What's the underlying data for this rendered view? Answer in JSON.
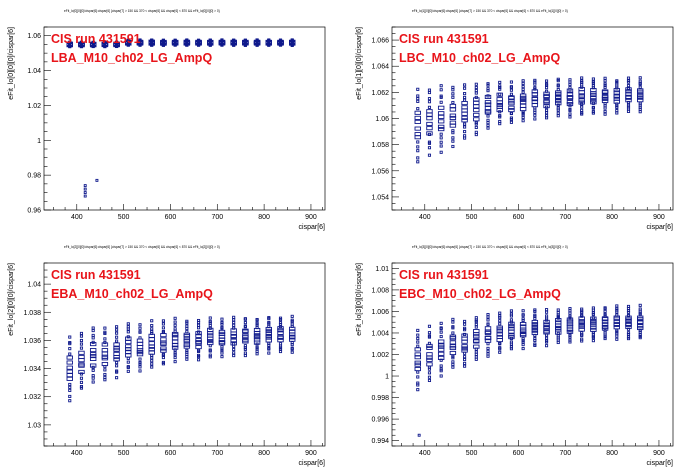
{
  "annotation_run": "CIS run 431591",
  "chart_data": [
    {
      "type": "scatter",
      "title": "eFit_lo[0][0][0]/cispar[6]:cispar[6] {cispar[7] > 150 && 370 < cispar[6] && cispar[6] < 870 && eFit_lo[0][0][0] > 0}",
      "xlabel": "cispar[6]",
      "ylabel": "eFit_lo[0][0][0]/cispar[6]",
      "annotation_module": "LBA_M10_ch02_LG_AmpQ",
      "xlim": [
        330,
        930
      ],
      "ylim": [
        0.96,
        1.065
      ],
      "xticks": [
        400,
        500,
        600,
        700,
        800,
        900
      ],
      "yticks": [
        0.96,
        0.98,
        1.0,
        1.02,
        1.04,
        1.06
      ],
      "ytick_labels": [
        "0.96",
        "0.98",
        "1",
        "1.02",
        "1.04",
        "1.06"
      ],
      "x": [
        385,
        410,
        435,
        460,
        485,
        510,
        535,
        560,
        585,
        610,
        635,
        660,
        685,
        710,
        735,
        760,
        785,
        810,
        835,
        860
      ],
      "series_center": [
        1.055,
        1.055,
        1.055,
        1.055,
        1.055,
        1.056,
        1.056,
        1.056,
        1.056,
        1.056,
        1.056,
        1.056,
        1.056,
        1.056,
        1.056,
        1.056,
        1.056,
        1.056,
        1.056,
        1.056
      ],
      "series_spread": [
        0.0025,
        0.0025,
        0.0025,
        0.0025,
        0.0025,
        0.003,
        0.003,
        0.003,
        0.003,
        0.003,
        0.003,
        0.003,
        0.003,
        0.003,
        0.003,
        0.003,
        0.003,
        0.003,
        0.003,
        0.003
      ],
      "outliers": [
        {
          "x": 418,
          "y": 0.974
        },
        {
          "x": 418,
          "y": 0.972
        },
        {
          "x": 418,
          "y": 0.97
        },
        {
          "x": 418,
          "y": 0.968
        },
        {
          "x": 443,
          "y": 0.977
        }
      ]
    },
    {
      "type": "scatter",
      "title": "eFit_lo[1][0][0]/cispar[6]:cispar[6] {cispar[7] > 150 && 370 < cispar[6] && cispar[6] < 870 && eFit_lo[1][0][0] > 0}",
      "xlabel": "cispar[6]",
      "ylabel": "eFit_lo[1][0][0]/cispar[6]",
      "annotation_module": "LBC_M10_ch02_LG_AmpQ",
      "xlim": [
        330,
        930
      ],
      "ylim": [
        1.053,
        1.067
      ],
      "xticks": [
        400,
        500,
        600,
        700,
        800,
        900
      ],
      "yticks": [
        1.054,
        1.056,
        1.058,
        1.06,
        1.062,
        1.064,
        1.066
      ],
      "ytick_labels": [
        "1.054",
        "1.056",
        "1.058",
        "1.06",
        "1.062",
        "1.064",
        "1.066"
      ],
      "x": [
        385,
        410,
        435,
        460,
        485,
        510,
        535,
        560,
        585,
        610,
        635,
        660,
        685,
        710,
        735,
        760,
        785,
        810,
        835,
        860
      ],
      "series_center": [
        1.0595,
        1.0598,
        1.06,
        1.0602,
        1.0605,
        1.0607,
        1.061,
        1.0612,
        1.0612,
        1.0613,
        1.0615,
        1.0615,
        1.0616,
        1.0616,
        1.0617,
        1.0617,
        1.0617,
        1.0617,
        1.0618,
        1.0618
      ],
      "series_spread": [
        0.0055,
        0.005,
        0.005,
        0.0045,
        0.004,
        0.004,
        0.0035,
        0.0032,
        0.003,
        0.003,
        0.003,
        0.0028,
        0.0028,
        0.0028,
        0.0028,
        0.0026,
        0.0026,
        0.0025,
        0.0025,
        0.0025
      ],
      "outliers": []
    },
    {
      "type": "scatter",
      "title": "eFit_lo[2][0][0]/cispar[6]:cispar[6] {cispar[7] > 150 && 370 < cispar[6] && cispar[6] < 870 && eFit_lo[2][0][0] > 0}",
      "xlabel": "cispar[6]",
      "ylabel": "eFit_lo[2][0][0]/cispar[6]",
      "annotation_module": "EBA_M10_ch02_LG_AmpQ",
      "xlim": [
        330,
        930
      ],
      "ylim": [
        1.0285,
        1.0415
      ],
      "xticks": [
        400,
        500,
        600,
        700,
        800,
        900
      ],
      "yticks": [
        1.03,
        1.032,
        1.034,
        1.036,
        1.038,
        1.04
      ],
      "ytick_labels": [
        "1.03",
        "1.032",
        "1.034",
        "1.036",
        "1.038",
        "1.04"
      ],
      "x": [
        385,
        410,
        435,
        460,
        485,
        510,
        535,
        560,
        585,
        610,
        635,
        660,
        685,
        710,
        735,
        760,
        785,
        810,
        835,
        860
      ],
      "series_center": [
        1.034,
        1.0345,
        1.035,
        1.035,
        1.0352,
        1.0355,
        1.0355,
        1.0357,
        1.0358,
        1.036,
        1.036,
        1.036,
        1.0362,
        1.0362,
        1.0363,
        1.0363,
        1.0363,
        1.0364,
        1.0364,
        1.0364
      ],
      "series_spread": [
        0.0045,
        0.004,
        0.004,
        0.0038,
        0.0035,
        0.0035,
        0.0033,
        0.0032,
        0.003,
        0.003,
        0.0028,
        0.0028,
        0.0028,
        0.0026,
        0.0026,
        0.0026,
        0.0025,
        0.0025,
        0.0025,
        0.0025
      ],
      "outliers": []
    },
    {
      "type": "scatter",
      "title": "eFit_lo[3][0][0]/cispar[6]:cispar[6] {cispar[7] > 150 && 370 < cispar[6] && cispar[6] < 870 && eFit_lo[3][0][0] > 0}",
      "xlabel": "cispar[6]",
      "ylabel": "eFit_lo[3][0][0]/cispar[6]",
      "annotation_module": "EBC_M10_ch02_LG_AmpQ",
      "xlim": [
        330,
        930
      ],
      "ylim": [
        0.9935,
        1.0105
      ],
      "xticks": [
        400,
        500,
        600,
        700,
        800,
        900
      ],
      "yticks": [
        0.994,
        0.996,
        0.998,
        1.0,
        1.002,
        1.004,
        1.006,
        1.008,
        1.01
      ],
      "ytick_labels": [
        "0.994",
        "0.996",
        "0.998",
        "1",
        "1.002",
        "1.004",
        "1.006",
        "1.008",
        "1.01"
      ],
      "x": [
        385,
        410,
        435,
        460,
        485,
        510,
        535,
        560,
        585,
        610,
        635,
        660,
        685,
        710,
        735,
        760,
        785,
        810,
        835,
        860
      ],
      "series_center": [
        1.0015,
        1.002,
        1.0025,
        1.003,
        1.003,
        1.0035,
        1.0038,
        1.004,
        1.0042,
        1.0043,
        1.0045,
        1.0045,
        1.0046,
        1.0047,
        1.0048,
        1.0048,
        1.0049,
        1.005,
        1.005,
        1.005
      ],
      "series_spread": [
        0.0055,
        0.005,
        0.0048,
        0.0045,
        0.0042,
        0.004,
        0.0038,
        0.0036,
        0.0035,
        0.0034,
        0.0033,
        0.0032,
        0.0031,
        0.003,
        0.003,
        0.003,
        0.003,
        0.003,
        0.003,
        0.003
      ],
      "outliers": [
        {
          "x": 388,
          "y": 0.9945
        }
      ]
    }
  ]
}
